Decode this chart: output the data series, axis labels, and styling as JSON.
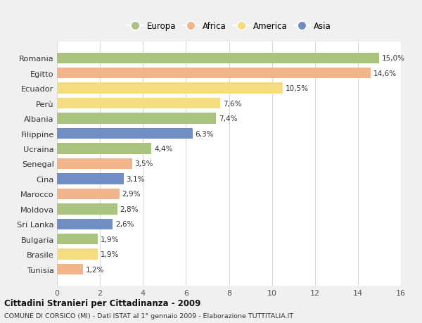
{
  "countries": [
    "Romania",
    "Egitto",
    "Ecuador",
    "Perù",
    "Albania",
    "Filippine",
    "Ucraina",
    "Senegal",
    "Cina",
    "Marocco",
    "Moldova",
    "Sri Lanka",
    "Bulgaria",
    "Brasile",
    "Tunisia"
  ],
  "values": [
    15.0,
    14.6,
    10.5,
    7.6,
    7.4,
    6.3,
    4.4,
    3.5,
    3.1,
    2.9,
    2.8,
    2.6,
    1.9,
    1.9,
    1.2
  ],
  "labels": [
    "15,0%",
    "14,6%",
    "10,5%",
    "7,6%",
    "7,4%",
    "6,3%",
    "4,4%",
    "3,5%",
    "3,1%",
    "2,9%",
    "2,8%",
    "2,6%",
    "1,9%",
    "1,9%",
    "1,2%"
  ],
  "regions": [
    "Europa",
    "Africa",
    "America",
    "America",
    "Europa",
    "Asia",
    "Europa",
    "Africa",
    "Asia",
    "Africa",
    "Europa",
    "Asia",
    "Europa",
    "America",
    "Africa"
  ],
  "region_colors": {
    "Europa": "#a8c47e",
    "Africa": "#f2b48a",
    "America": "#f5dc80",
    "Asia": "#6f8ec4"
  },
  "legend_order": [
    "Europa",
    "Africa",
    "America",
    "Asia"
  ],
  "title": "Cittadini Stranieri per Cittadinanza - 2009",
  "subtitle": "COMUNE DI CORSICO (MI) - Dati ISTAT al 1° gennaio 2009 - Elaborazione TUTTITALIA.IT",
  "xlim": [
    0,
    16
  ],
  "xticks": [
    0,
    2,
    4,
    6,
    8,
    10,
    12,
    14,
    16
  ],
  "background_color": "#f0f0f0",
  "bar_background": "#ffffff",
  "grid_color": "#d8d8d8"
}
